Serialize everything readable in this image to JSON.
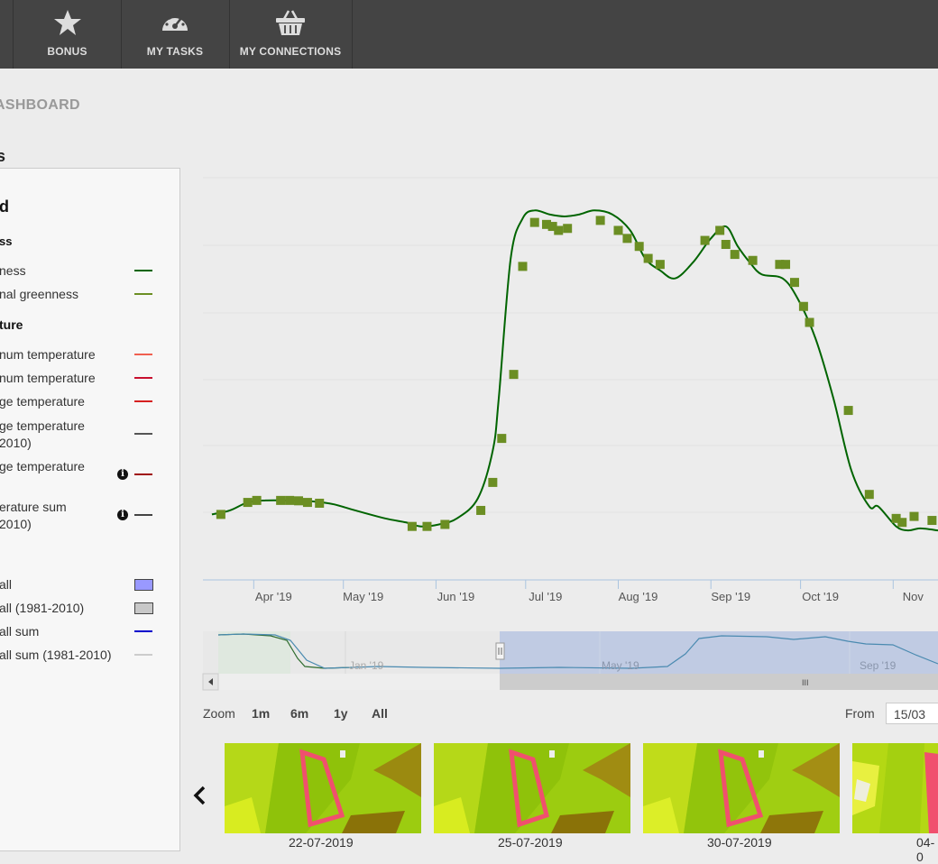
{
  "nav": {
    "items": [
      {
        "label": "BONUS",
        "icon": "star-icon"
      },
      {
        "label": "MY TASKS",
        "icon": "gauge-icon"
      },
      {
        "label": "MY CONNECTIONS",
        "icon": "basket-icon"
      }
    ]
  },
  "breadcrumb": "ASHBOARD",
  "section_title": "s",
  "legend": {
    "title": "d",
    "groups": [
      {
        "header": "ss",
        "items": [
          {
            "label": "ness",
            "color": "#006400",
            "swatch": "line"
          },
          {
            "label": "nal greenness",
            "color": "#6b8e23",
            "swatch": "line"
          }
        ]
      },
      {
        "header": "ture",
        "items": [
          {
            "label": "num temperature",
            "color": "#f06050",
            "swatch": "line"
          },
          {
            "label": "num temperature",
            "color": "#c8102e",
            "swatch": "line"
          },
          {
            "label": "ge temperature",
            "color": "#d62020",
            "swatch": "line"
          },
          {
            "label": "ge temperature",
            "label2": "2010)",
            "color": "#555555",
            "swatch": "line"
          },
          {
            "label": "ge temperature",
            "color": "#a01010",
            "swatch": "line",
            "info": true
          },
          {
            "label": "erature sum",
            "label2": "2010)",
            "color": "#444444",
            "swatch": "line",
            "info": true
          }
        ]
      },
      {
        "header": "",
        "items": [
          {
            "label": "all",
            "color": "#9999ff",
            "swatch": "box"
          },
          {
            "label": "all (1981-2010)",
            "color": "#c8c8c8",
            "swatch": "box"
          },
          {
            "label": "all sum",
            "color": "#0000cc",
            "swatch": "line"
          },
          {
            "label": "all sum (1981-2010)",
            "color": "#cccccc",
            "swatch": "line"
          }
        ]
      }
    ]
  },
  "chart_data": {
    "type": "line",
    "series": [
      {
        "color": "#006400",
        "marker_color": "#6b8e23",
        "points": [
          [
            "2019-03-18",
            0.31
          ],
          [
            "2019-03-24",
            0.32
          ],
          [
            "2019-03-30",
            0.34
          ],
          [
            "2019-04-05",
            0.345
          ],
          [
            "2019-04-12",
            0.345
          ],
          [
            "2019-04-18",
            0.344
          ],
          [
            "2019-04-24",
            0.34
          ],
          [
            "2019-04-28",
            0.335
          ],
          [
            "2019-05-05",
            0.32
          ],
          [
            "2019-05-15",
            0.3
          ],
          [
            "2019-05-22",
            0.29
          ],
          [
            "2019-05-27",
            0.28
          ],
          [
            "2019-06-02",
            0.285
          ],
          [
            "2019-06-08",
            0.3
          ],
          [
            "2019-06-15",
            0.35
          ],
          [
            "2019-06-20",
            0.47
          ],
          [
            "2019-06-22",
            0.6
          ],
          [
            "2019-06-26",
            0.95
          ],
          [
            "2019-06-30",
            1.05
          ],
          [
            "2019-07-04",
            1.07
          ],
          [
            "2019-07-09",
            1.06
          ],
          [
            "2019-07-14",
            1.055
          ],
          [
            "2019-07-19",
            1.06
          ],
          [
            "2019-07-24",
            1.07
          ],
          [
            "2019-07-30",
            1.06
          ],
          [
            "2019-08-05",
            1.02
          ],
          [
            "2019-08-10",
            0.95
          ],
          [
            "2019-08-15",
            0.92
          ],
          [
            "2019-08-20",
            0.9
          ],
          [
            "2019-08-26",
            0.94
          ],
          [
            "2019-09-01",
            1.0
          ],
          [
            "2019-09-06",
            1.03
          ],
          [
            "2019-09-10",
            0.98
          ],
          [
            "2019-09-14",
            0.94
          ],
          [
            "2019-09-18",
            0.91
          ],
          [
            "2019-09-25",
            0.9
          ],
          [
            "2019-09-30",
            0.85
          ],
          [
            "2019-10-06",
            0.75
          ],
          [
            "2019-10-12",
            0.6
          ],
          [
            "2019-10-18",
            0.42
          ],
          [
            "2019-10-24",
            0.33
          ],
          [
            "2019-10-27",
            0.33
          ],
          [
            "2019-11-02",
            0.28
          ],
          [
            "2019-11-06",
            0.27
          ],
          [
            "2019-11-10",
            0.275
          ],
          [
            "2019-11-16",
            0.27
          ]
        ],
        "markers": [
          [
            "2019-03-21",
            0.31
          ],
          [
            "2019-03-30",
            0.34
          ],
          [
            "2019-04-02",
            0.345
          ],
          [
            "2019-04-10",
            0.345
          ],
          [
            "2019-04-13",
            0.345
          ],
          [
            "2019-04-16",
            0.344
          ],
          [
            "2019-04-19",
            0.34
          ],
          [
            "2019-04-23",
            0.338
          ],
          [
            "2019-05-24",
            0.28
          ],
          [
            "2019-05-29",
            0.28
          ],
          [
            "2019-06-04",
            0.285
          ],
          [
            "2019-06-16",
            0.32
          ],
          [
            "2019-06-20",
            0.39
          ],
          [
            "2019-06-23",
            0.5
          ],
          [
            "2019-06-27",
            0.66
          ],
          [
            "2019-06-30",
            0.93
          ],
          [
            "2019-07-04",
            1.04
          ],
          [
            "2019-07-08",
            1.035
          ],
          [
            "2019-07-10",
            1.03
          ],
          [
            "2019-07-12",
            1.02
          ],
          [
            "2019-07-15",
            1.025
          ],
          [
            "2019-07-26",
            1.045
          ],
          [
            "2019-08-01",
            1.02
          ],
          [
            "2019-08-04",
            1.0
          ],
          [
            "2019-08-08",
            0.98
          ],
          [
            "2019-08-11",
            0.95
          ],
          [
            "2019-08-15",
            0.935
          ],
          [
            "2019-08-30",
            0.995
          ],
          [
            "2019-09-04",
            1.02
          ],
          [
            "2019-09-06",
            0.985
          ],
          [
            "2019-09-09",
            0.96
          ],
          [
            "2019-09-15",
            0.945
          ],
          [
            "2019-09-24",
            0.935
          ],
          [
            "2019-09-26",
            0.935
          ],
          [
            "2019-09-29",
            0.89
          ],
          [
            "2019-10-02",
            0.83
          ],
          [
            "2019-10-04",
            0.79
          ],
          [
            "2019-10-17",
            0.57
          ],
          [
            "2019-10-24",
            0.36
          ],
          [
            "2019-11-02",
            0.3
          ],
          [
            "2019-11-04",
            0.29
          ],
          [
            "2019-11-08",
            0.305
          ],
          [
            "2019-11-14",
            0.295
          ]
        ]
      }
    ],
    "x_range": [
      "2019-03-15",
      "2019-11-16"
    ],
    "y_range": [
      0.25,
      1.1
    ],
    "x_ticks": [
      "Apr '19",
      "May '19",
      "Jun '19",
      "Jul '19",
      "Aug '19",
      "Sep '19",
      "Oct '19",
      "Nov"
    ],
    "grid": true
  },
  "navigator": {
    "labels": [
      "Jan '19",
      "May '19",
      "Sep '19"
    ],
    "handle_label": "III"
  },
  "zoom": {
    "label": "Zoom",
    "buttons": [
      "1m",
      "6m",
      "1y",
      "All"
    ]
  },
  "range": {
    "from_label": "From",
    "from_value": "15/03"
  },
  "thumbnails": [
    {
      "date": "22-07-2019"
    },
    {
      "date": "25-07-2019"
    },
    {
      "date": "30-07-2019"
    },
    {
      "date": "04-0"
    }
  ]
}
